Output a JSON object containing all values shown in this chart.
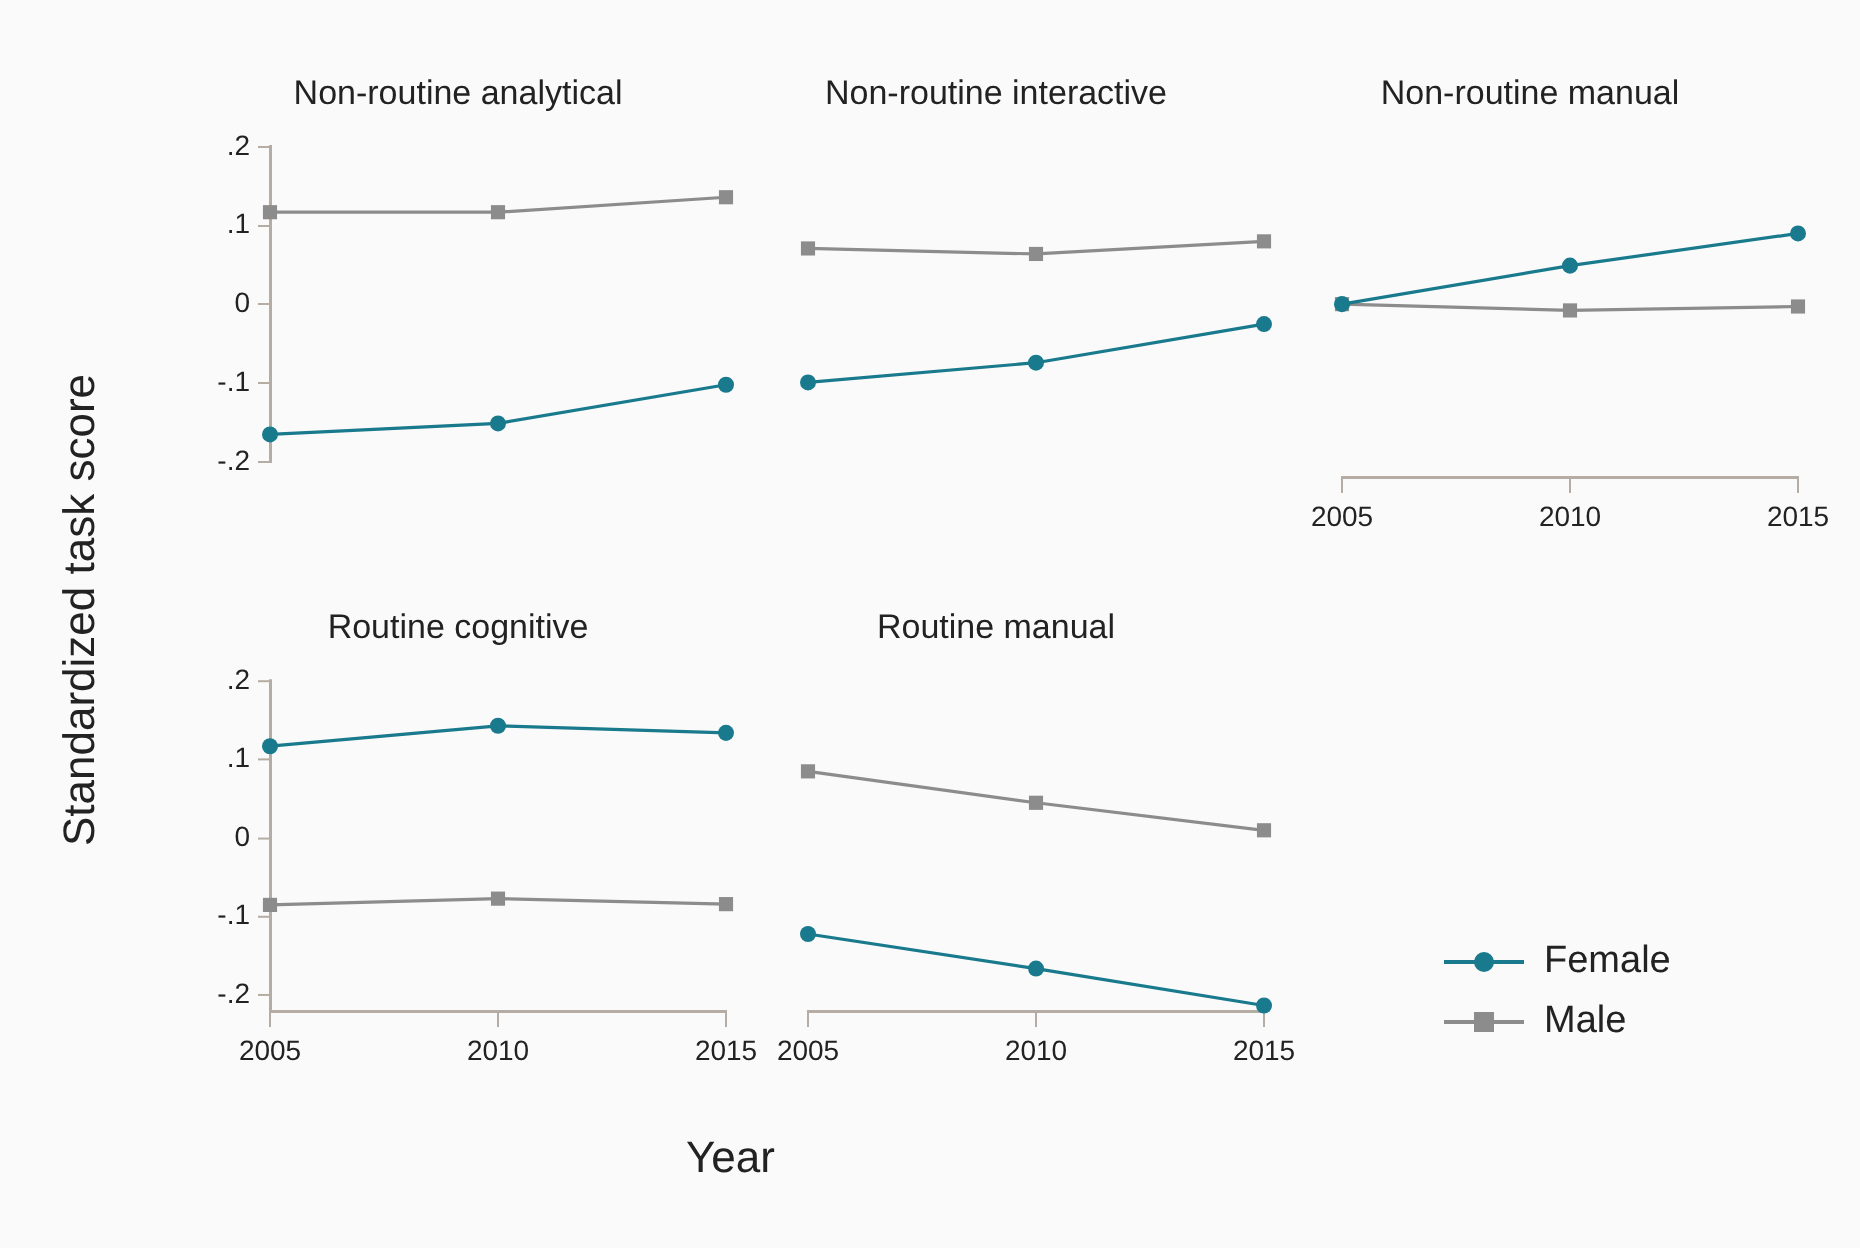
{
  "chart_data": [
    {
      "type": "line",
      "title": "Non-routine analytical",
      "ylabel": "Standardized task score",
      "x": [
        2005,
        2010,
        2015
      ],
      "xlim": [
        2005,
        2015
      ],
      "xticks": [
        2005,
        2010,
        2015
      ],
      "ylim": [
        -0.2,
        0.2
      ],
      "yticks": [
        {
          "value": -0.2,
          "label": "-.2"
        },
        {
          "value": -0.1,
          "label": "-.1"
        },
        0,
        {
          "value": 0.1,
          "label": ".1"
        },
        {
          "value": 0.2,
          "label": ".2"
        }
      ],
      "tick_labels": "y",
      "grid": false,
      "legend": false,
      "series": [
        {
          "color": "#187a8c",
          "marker": "circle",
          "values": [
            -0.165,
            -0.151,
            -0.102
          ]
        },
        {
          "color": "#8c8c8c",
          "marker": "square",
          "values": [
            0.117,
            0.117,
            0.136
          ]
        }
      ]
    },
    {
      "type": "line",
      "title": "Non-routine interactive",
      "x": [
        2005,
        2010,
        2015
      ],
      "xlim": [
        2005,
        2015
      ],
      "xticks": [
        2005,
        2010,
        2015
      ],
      "ylim": [
        -0.2,
        0.2
      ],
      "tick_labels": false,
      "grid": false,
      "legend": false,
      "series": [
        {
          "color": "#187a8c",
          "marker": "circle",
          "values": [
            -0.099,
            -0.074,
            -0.025
          ]
        },
        {
          "color": "#8c8c8c",
          "marker": "square",
          "values": [
            0.071,
            0.064,
            0.08
          ]
        }
      ]
    },
    {
      "type": "line",
      "title": "Non-routine manual",
      "x": [
        2005,
        2010,
        2015
      ],
      "xlim": [
        2005,
        2015
      ],
      "xticks": [
        2005,
        2010,
        2015
      ],
      "ylim": [
        -0.22,
        0.2
      ],
      "tick_labels": "x",
      "grid": false,
      "legend": false,
      "series": [
        {
          "color": "#187a8c",
          "marker": "circle",
          "values": [
            0,
            0.049,
            0.09
          ]
        },
        {
          "color": "#8c8c8c",
          "marker": "square",
          "values": [
            0,
            -0.008,
            -0.003
          ]
        }
      ]
    },
    {
      "type": "line",
      "title": "Routine cognitive",
      "xlabel": "Year",
      "x": [
        2005,
        2010,
        2015
      ],
      "xlim": [
        2005,
        2015
      ],
      "xticks": [
        2005,
        2010,
        2015
      ],
      "ylim": [
        -0.22,
        0.2
      ],
      "yticks": [
        {
          "value": -0.2,
          "label": "-.2"
        },
        {
          "value": -0.1,
          "label": "-.1"
        },
        0,
        {
          "value": 0.1,
          "label": ".1"
        },
        {
          "value": 0.2,
          "label": ".2"
        }
      ],
      "grid": false,
      "legend": false,
      "series": [
        {
          "color": "#187a8c",
          "marker": "circle",
          "values": [
            0.117,
            0.143,
            0.134
          ]
        },
        {
          "color": "#8c8c8c",
          "marker": "square",
          "values": [
            -0.085,
            -0.077,
            -0.084
          ]
        }
      ]
    },
    {
      "type": "line",
      "title": "Routine manual",
      "x": [
        2005,
        2010,
        2015
      ],
      "xlim": [
        2005,
        2015
      ],
      "xticks": [
        2005,
        2010,
        2015
      ],
      "ylim": [
        -0.22,
        0.2
      ],
      "tick_labels": "x",
      "grid": false,
      "legend": "right",
      "series": [
        {
          "name": "Female",
          "color": "#187a8c",
          "marker": "circle",
          "values": [
            -0.122,
            -0.166,
            -0.213
          ]
        },
        {
          "name": "Male",
          "color": "#8c8c8c",
          "marker": "square",
          "values": [
            0.085,
            0.045,
            0.01
          ]
        }
      ]
    }
  ]
}
